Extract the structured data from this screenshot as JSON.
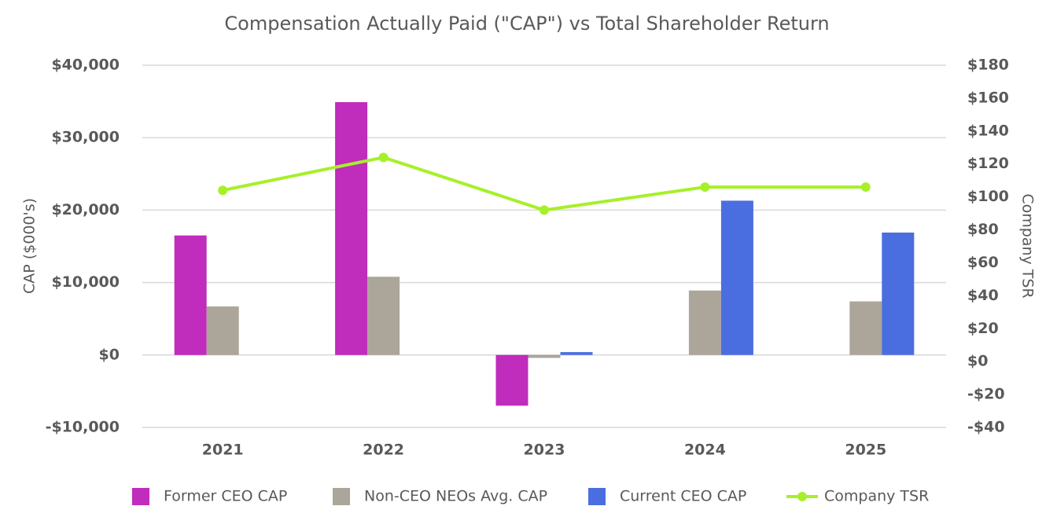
{
  "chart_data": {
    "type": "bar",
    "title": "Compensation Actually Paid (\"CAP\") vs Total Shareholder Return",
    "y_label": "CAP ($000's)",
    "y2_label": "Company TSR",
    "categories": [
      "2021",
      "2022",
      "2023",
      "2024",
      "2025"
    ],
    "series": [
      {
        "name": "Former CEO CAP",
        "type": "bar",
        "color": "#c02cbc",
        "values": [
          16500,
          34900,
          -7000,
          null,
          null
        ]
      },
      {
        "name": "Non-CEO NEOs Avg. CAP",
        "type": "bar",
        "color": "#aca59a",
        "values": [
          6700,
          10800,
          -400,
          8900,
          7400
        ]
      },
      {
        "name": "Current CEO CAP",
        "type": "bar",
        "color": "#4a6ee0",
        "values": [
          null,
          null,
          400,
          21300,
          16900
        ]
      },
      {
        "name": "Company TSR",
        "type": "line",
        "axis": "y2",
        "color": "#a6f02a",
        "values": [
          104,
          124,
          92,
          106,
          106
        ]
      }
    ],
    "ylim": [
      -10000,
      40000
    ],
    "yticks": [
      {
        "value": -10000,
        "label": "-$10,000"
      },
      {
        "value": 0,
        "label": "$0"
      },
      {
        "value": 10000,
        "label": "$10,000"
      },
      {
        "value": 20000,
        "label": "$20,000"
      },
      {
        "value": 30000,
        "label": "$30,000"
      },
      {
        "value": 40000,
        "label": "$40,000"
      }
    ],
    "y2lim": [
      -40,
      180
    ],
    "y2ticks": [
      {
        "value": -40,
        "label": "-$40"
      },
      {
        "value": -20,
        "label": "-$20"
      },
      {
        "value": 0,
        "label": "$0"
      },
      {
        "value": 20,
        "label": "$20"
      },
      {
        "value": 40,
        "label": "$40"
      },
      {
        "value": 60,
        "label": "$60"
      },
      {
        "value": 80,
        "label": "$80"
      },
      {
        "value": 100,
        "label": "$100"
      },
      {
        "value": 120,
        "label": "$120"
      },
      {
        "value": 140,
        "label": "$140"
      },
      {
        "value": 160,
        "label": "$160"
      },
      {
        "value": 180,
        "label": "$180"
      }
    ],
    "grid": true,
    "legend": "bottom"
  }
}
